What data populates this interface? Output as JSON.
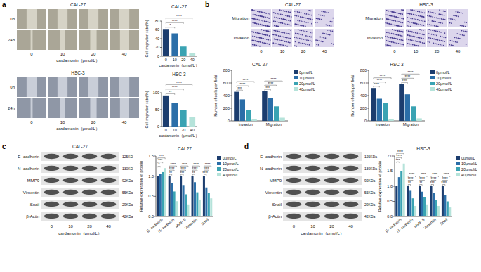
{
  "figure": {
    "panel_labels": [
      "a",
      "b",
      "c",
      "d"
    ],
    "wound_healing": [
      {
        "cell_line": "CAL-27",
        "rows": [
          "0h",
          "24h"
        ],
        "doses": [
          "0",
          "10",
          "20",
          "40"
        ],
        "xlabel": "cardamonin（μmol/L）"
      },
      {
        "cell_line": "HSC-3",
        "rows": [
          "0h",
          "24h"
        ],
        "doses": [
          "0",
          "10",
          "20",
          "40"
        ],
        "xlabel": "cardamonin（μmol/L）"
      }
    ],
    "transwell": [
      {
        "cell_line": "CAL-27",
        "rows": [
          "Migration",
          "Invasion"
        ],
        "doses": [
          "0",
          "10",
          "20",
          "40"
        ]
      },
      {
        "cell_line": "HSC-3",
        "rows": [
          "Migration",
          "Invasion"
        ],
        "doses": [
          "0",
          "10",
          "20",
          "40"
        ]
      }
    ],
    "western_blot": [
      {
        "cell_line": "CAL-27",
        "proteins": [
          "E- cadherin",
          "N- cadherin",
          "MMP9",
          "Vimentin",
          "Snail",
          "β-Actin"
        ],
        "sizes": [
          "125KD",
          "130KD",
          "92KDa",
          "55KDa",
          "29KDa",
          "42KDa"
        ],
        "doses": [
          "0",
          "10",
          "20",
          "40"
        ],
        "xlabel": "cardamonin（μmol/L）"
      },
      {
        "proteins": [
          "E- cadherin",
          "N- cadherin",
          "MMP9",
          "Vimentin",
          "Snail",
          "β-Actin"
        ],
        "sizes": [
          "125KDa",
          "130KDa",
          "92KDa",
          "55KDa",
          "29KDa",
          "42KDa"
        ],
        "doses": [
          "0",
          "10",
          "20",
          "40"
        ],
        "xlabel": "cardamonin（μmol/L）"
      }
    ]
  },
  "chart_data": [
    {
      "type": "bar",
      "title": "CAL-27",
      "xlabel": "cardamonin（μmol/L）",
      "ylabel": "Cell migration rate(%)",
      "categories": [
        "0",
        "10",
        "20",
        "40"
      ],
      "values": [
        62,
        52,
        22,
        8
      ],
      "colors": [
        "#1c3d6e",
        "#2b6ea8",
        "#3aa3b3",
        "#b5e3da"
      ],
      "significance": [
        null,
        "*",
        "****",
        "****"
      ],
      "ylim": [
        0,
        80
      ],
      "yticks": [
        0,
        20,
        40,
        60,
        80
      ],
      "grid": false
    },
    {
      "type": "bar",
      "title": "HSC-3",
      "xlabel": "cardamonin（μmol/L）",
      "ylabel": "Cell migration rate(%)",
      "categories": [
        "0",
        "10",
        "20",
        "40"
      ],
      "values": [
        92,
        70,
        50,
        28
      ],
      "colors": [
        "#1c3d6e",
        "#2b6ea8",
        "#3aa3b3",
        "#b5e3da"
      ],
      "significance": [
        null,
        "**",
        "****",
        "****"
      ],
      "ylim": [
        0,
        100
      ],
      "yticks": [
        0,
        50,
        100
      ],
      "grid": false
    },
    {
      "type": "bar",
      "title": "CAL-27",
      "ylabel": "Number of cells per field",
      "categories": [
        "Invasion",
        "Migration"
      ],
      "series": [
        {
          "name": "0μmol/L",
          "color": "#1c3d6e",
          "values": [
            460,
            470
          ]
        },
        {
          "name": "10μmol/L",
          "color": "#2b6ea8",
          "values": [
            340,
            360
          ],
          "significance": [
            "***",
            "***"
          ]
        },
        {
          "name": "20μmol/L",
          "color": "#3aa3b3",
          "values": [
            170,
            230
          ],
          "significance": [
            "****",
            "****"
          ]
        },
        {
          "name": "40μmol/L",
          "color": "#b5e3da",
          "values": [
            30,
            50
          ],
          "significance": [
            "****",
            "****"
          ]
        }
      ],
      "ylim": [
        0,
        800
      ],
      "yticks": [
        0,
        200,
        400,
        600,
        800
      ],
      "legend": "right",
      "grid": false
    },
    {
      "type": "bar",
      "title": "HSC-3",
      "ylabel": "Number of cells per field",
      "categories": [
        "Invasion",
        "Migration"
      ],
      "series": [
        {
          "name": "0μmol/L",
          "color": "#1c3d6e",
          "values": [
            520,
            580
          ]
        },
        {
          "name": "10μmol/L",
          "color": "#2b6ea8",
          "values": [
            350,
            420
          ],
          "significance": [
            "****",
            "****"
          ]
        },
        {
          "name": "20μmol/L",
          "color": "#3aa3b3",
          "values": [
            280,
            230
          ],
          "significance": [
            "****",
            "****"
          ]
        },
        {
          "name": "40μmol/L",
          "color": "#b5e3da",
          "values": [
            30,
            40
          ],
          "significance": [
            "****",
            "****"
          ]
        }
      ],
      "ylim": [
        0,
        800
      ],
      "yticks": [
        0,
        200,
        400,
        600,
        800
      ],
      "legend": "right",
      "grid": false
    },
    {
      "type": "bar",
      "title": "CAL27",
      "ylabel": "Relative expression of protein",
      "categories": [
        "E- cadherin",
        "N- cadherin",
        "MMP-9",
        "Vimentin",
        "Snail"
      ],
      "series": [
        {
          "name": "0μmol/L",
          "color": "#1c3d6e",
          "values": [
            1,
            1,
            1,
            1,
            1
          ]
        },
        {
          "name": "10μmol/L",
          "color": "#2b6ea8",
          "values": [
            1.05,
            0.82,
            0.78,
            0.85,
            0.72
          ],
          "significance": [
            "*",
            "**",
            "***",
            "**",
            "****"
          ]
        },
        {
          "name": "20μmol/L",
          "color": "#3aa3b3",
          "values": [
            1.1,
            0.62,
            0.55,
            0.6,
            0.58
          ],
          "significance": [
            "***",
            "****",
            "****",
            "****",
            "****"
          ]
        },
        {
          "name": "40μmol/L",
          "color": "#b5e3da",
          "values": [
            1.2,
            0.38,
            0.3,
            0.42,
            0.45
          ],
          "significance": [
            "****",
            "****",
            "****",
            "****",
            "****"
          ]
        }
      ],
      "ylim": [
        0,
        1.5
      ],
      "yticks": [
        {
          "value": 0,
          "label": "0.0"
        },
        0.5,
        {
          "value": 1,
          "label": "1.0"
        },
        1.5
      ],
      "legend": "right",
      "grid": false
    },
    {
      "type": "bar",
      "title": "HSC-3",
      "ylabel": "Relative expression of protein",
      "categories": [
        "E- cadherin",
        "N- cadherin",
        "MMP-9",
        "Vimentin",
        "Snail"
      ],
      "series": [
        {
          "name": "0μmol/L",
          "color": "#1c3d6e",
          "values": [
            1,
            1,
            1,
            1,
            1
          ]
        },
        {
          "name": "10μmol/L",
          "color": "#2b6ea8",
          "values": [
            1.3,
            0.85,
            0.82,
            0.78,
            0.7
          ],
          "significance": [
            "***",
            "**",
            "**",
            "***",
            "****"
          ]
        },
        {
          "name": "20μmol/L",
          "color": "#3aa3b3",
          "values": [
            1.5,
            0.6,
            0.65,
            0.55,
            0.5
          ],
          "significance": [
            "****",
            "****",
            "****",
            "****",
            "****"
          ]
        },
        {
          "name": "40μmol/L",
          "color": "#b5e3da",
          "values": [
            1.75,
            0.35,
            0.4,
            0.35,
            0.3
          ],
          "significance": [
            "****",
            "****",
            "****",
            "****",
            "****"
          ]
        }
      ],
      "ylim": [
        0,
        2
      ],
      "yticks": [
        {
          "value": 0,
          "label": "0.0"
        },
        0.5,
        {
          "value": 1,
          "label": "1.0"
        },
        1.5,
        {
          "value": 2,
          "label": "2.0"
        }
      ],
      "legend": "right",
      "grid": false
    }
  ]
}
